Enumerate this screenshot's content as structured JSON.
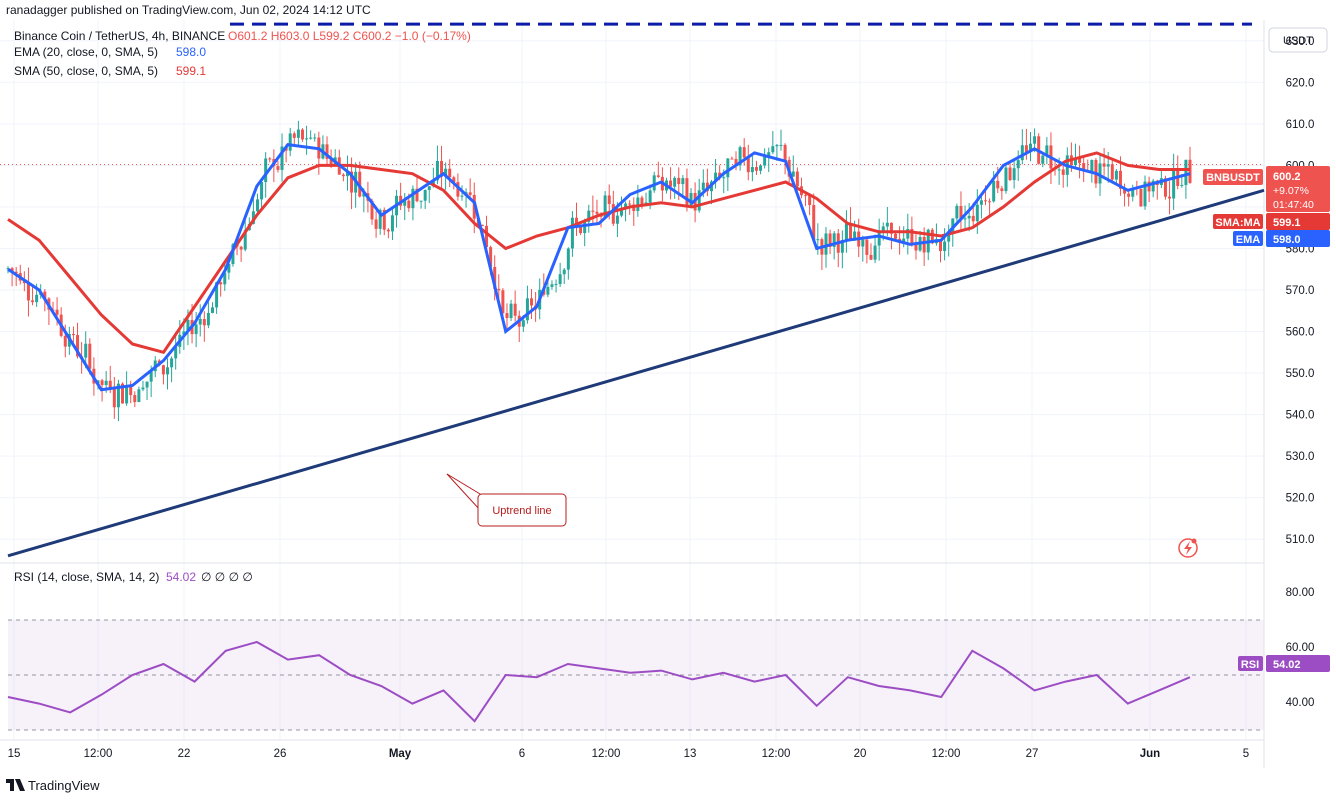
{
  "header": {
    "published": "ranadagger published on TradingView.com, Jun 02, 2024 14:12 UTC",
    "symbol_line": "Binance Coin / TetherUS, 4h, BINANCE",
    "ohlc_line": "O601.2 H603.0 L599.2 C600.2 −1.0 (−0.17%)",
    "ema_label": "EMA (20, close, 0, SMA, 5)",
    "ema_value": "598.0",
    "sma_label": "SMA (50, close, 0, SMA, 5)",
    "sma_value": "599.1",
    "rsi_label": "RSI (14, close, SMA, 14, 2)",
    "rsi_value": "54.02",
    "rsi_extra": "∅ ∅ ∅ ∅"
  },
  "currency_button": "USDT",
  "price_tags": {
    "symbol": "BNBUSDT",
    "price": "600.2",
    "change": "+9.07%",
    "countdown": "01:47:40",
    "sma_tag": "SMA:MA",
    "sma_val": "599.1",
    "ema_tag": "EMA",
    "ema_val": "598.0",
    "rsi_tag": "RSI",
    "rsi_val": "54.02"
  },
  "annotation": "Uptrend line",
  "logo_text": "TradingView",
  "colors": {
    "up": "#26a69a",
    "down": "#ef5350",
    "ema": "#2962ff",
    "sma": "#e53935",
    "trend": "#1f3a78",
    "rsi": "#9c4dc4",
    "resistance": "#0d1ca8"
  },
  "chart_data": [
    {
      "type": "candlestick",
      "symbol": "BNBUSDT",
      "interval": "4h",
      "ylim": [
        505,
        635
      ],
      "y_ticks": [
        510,
        520,
        530,
        540,
        550,
        560,
        570,
        580,
        590,
        600,
        610,
        620,
        630
      ],
      "x_ticks": [
        "15",
        "12:00",
        "22",
        "26",
        "May",
        "6",
        "12:00",
        "13",
        "12:00",
        "20",
        "12:00",
        "27",
        "Jun",
        "5"
      ],
      "last_price": 600.2,
      "resistance_level": 634,
      "trendline": {
        "start": 506,
        "end": 594
      },
      "series": [
        {
          "name": "EMA",
          "values": [
            575,
            570,
            558,
            546,
            547,
            553,
            562,
            575,
            595,
            605,
            604,
            598,
            588,
            593,
            598,
            591,
            560,
            566,
            585,
            586,
            593,
            596,
            591,
            598,
            603,
            601,
            580,
            582,
            583,
            581,
            582,
            590,
            600,
            604,
            600,
            598,
            594,
            596,
            598
          ]
        },
        {
          "name": "SMA:MA",
          "values": [
            587,
            582,
            573,
            564,
            557,
            555,
            566,
            577,
            588,
            597,
            600,
            600,
            599,
            598,
            594,
            586,
            580,
            583,
            585,
            588,
            590,
            591,
            590,
            592,
            594,
            596,
            592,
            586,
            584,
            584,
            583,
            585,
            590,
            596,
            601,
            603,
            600,
            599,
            599
          ]
        },
        {
          "name": "RSI",
          "values": [
            45,
            42,
            38,
            46,
            55,
            60,
            52,
            66,
            70,
            62,
            64,
            55,
            50,
            42,
            48,
            34,
            55,
            54,
            60,
            58,
            56,
            57,
            53,
            56,
            52,
            55,
            41,
            54,
            50,
            48,
            45,
            66,
            58,
            48,
            52,
            55,
            42,
            48,
            54
          ]
        }
      ]
    }
  ]
}
